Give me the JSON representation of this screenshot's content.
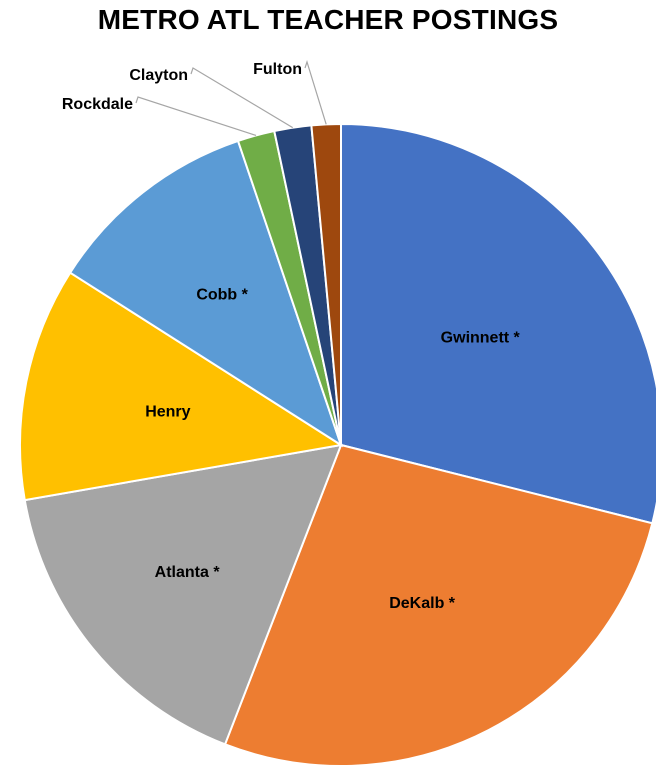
{
  "chart_data": {
    "type": "pie",
    "title": "METRO ATL TEACHER POSTINGS",
    "categories": [
      "Gwinnett *",
      "DeKalb *",
      "Atlanta *",
      "Henry",
      "Cobb *",
      "Rockdale",
      "Clayton",
      "Fulton"
    ],
    "values": [
      29.5,
      27.5,
      16.7,
      12.0,
      11.0,
      1.9,
      1.9,
      1.5
    ],
    "unit": "share of postings (%)",
    "colors": [
      "#4472C4",
      "#ED7D31",
      "#A5A5A5",
      "#FFC000",
      "#5B9BD5",
      "#70AD47",
      "#264478",
      "#9E480E"
    ],
    "start_angle": "12 o'clock",
    "direction": "clockwise",
    "legend": "none",
    "label_placement": "inside for large slices; outside with leader lines for small slices"
  }
}
